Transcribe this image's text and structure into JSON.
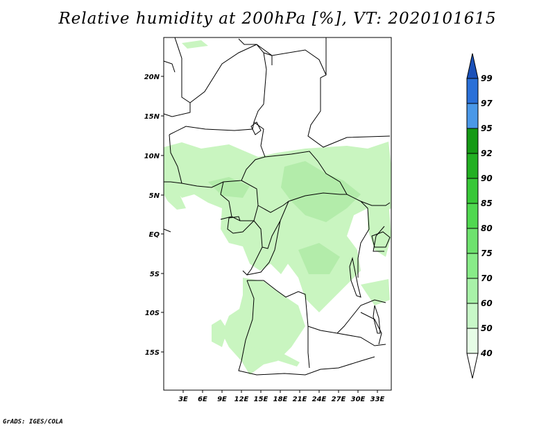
{
  "title": "Relative humidity at 200hPa [%], VT: 2020101615",
  "credit": "GrADS: IGES/COLA",
  "map": {
    "lat_labels": [
      "20N",
      "15N",
      "10N",
      "5N",
      "EQ",
      "5S",
      "10S",
      "15S"
    ],
    "lon_labels": [
      "3E",
      "6E",
      "9E",
      "12E",
      "15E",
      "18E",
      "21E",
      "24E",
      "27E",
      "30E",
      "33E"
    ]
  },
  "colorbar": {
    "levels": [
      "40",
      "50",
      "60",
      "70",
      "75",
      "80",
      "85",
      "90",
      "92",
      "95",
      "97",
      "99"
    ],
    "colors": [
      "#ffffff",
      "#e6fde6",
      "#c8f8c8",
      "#a8f2a8",
      "#88ec88",
      "#6ee26e",
      "#50d850",
      "#38c838",
      "#22b022",
      "#159a15",
      "#4a98e8",
      "#2a70d8",
      "#1a50b8"
    ]
  },
  "colors": {
    "humid_light": "#c9f5c0",
    "humid_mid": "#b6eeae",
    "border": "#000000"
  }
}
